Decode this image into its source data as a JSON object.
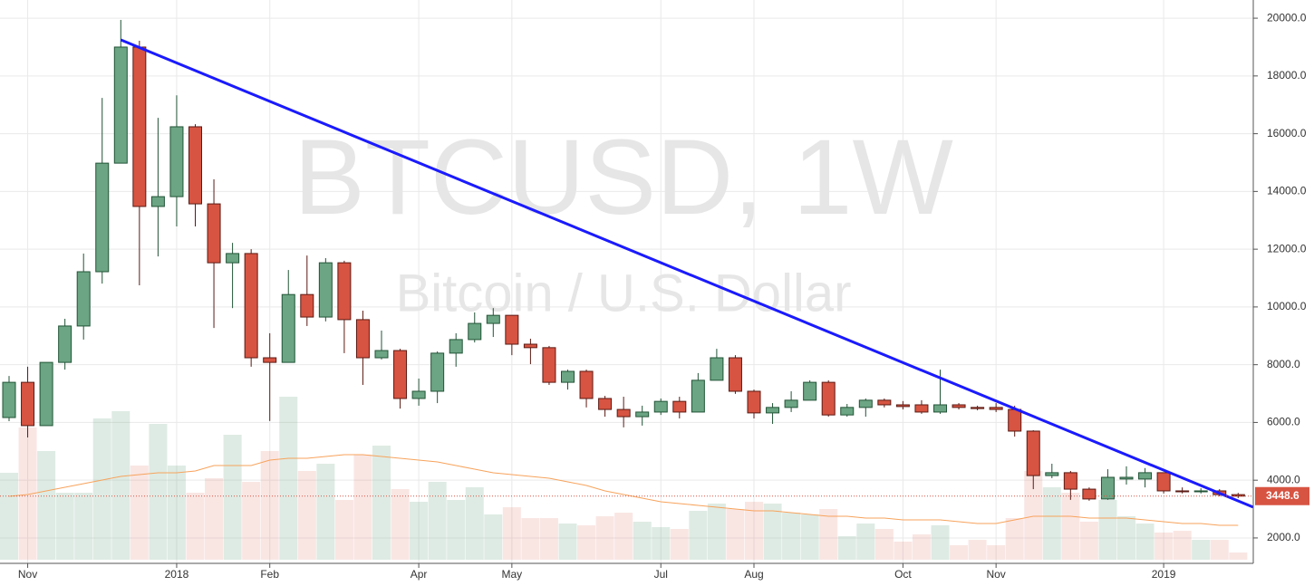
{
  "chart_data": {
    "type": "candlestick",
    "watermark_title": "BTCUSD, 1W",
    "watermark_subtitle": "Bitcoin / U.S. Dollar",
    "categories": [
      null,
      "Nov",
      null,
      null,
      null,
      null,
      null,
      null,
      null,
      "2018",
      null,
      null,
      null,
      null,
      "Feb",
      null,
      null,
      null,
      null,
      null,
      null,
      null,
      "Apr",
      null,
      null,
      null,
      null,
      "May",
      null,
      null,
      null,
      null,
      null,
      null,
      null,
      "Jul",
      null,
      null,
      null,
      null,
      "Aug",
      null,
      null,
      null,
      null,
      null,
      null,
      null,
      "Oct",
      null,
      null,
      null,
      null,
      "Nov",
      null,
      null,
      null,
      null,
      null,
      null,
      null,
      null,
      "2019",
      null,
      null,
      null,
      null
    ],
    "open": [
      6170,
      7390,
      5890,
      8080,
      9340,
      11220,
      14980,
      19000,
      13480,
      13820,
      16240,
      13570,
      11530,
      11850,
      8240,
      8080,
      10430,
      9650,
      11530,
      9560,
      8240,
      8490,
      6830,
      7080,
      8400,
      8870,
      9430,
      9710,
      8710,
      8590,
      7390,
      7770,
      6830,
      6450,
      6200,
      6360,
      6730,
      6360,
      7460,
      8240,
      7080,
      6330,
      6520,
      6770,
      7390,
      6260,
      6520,
      6770,
      6610,
      6610,
      6360,
      6610,
      6520,
      6520,
      6450,
      5700,
      4160,
      4260,
      3690,
      3350,
      4040,
      4040,
      4260,
      3630,
      3600,
      3630,
      3500
    ],
    "high": [
      7610,
      7930,
      8080,
      9590,
      11850,
      17240,
      19940,
      19220,
      16550,
      17330,
      16330,
      14420,
      12220,
      12000,
      9090,
      11280,
      11780,
      11690,
      11600,
      9870,
      9180,
      8550,
      7520,
      8460,
      9090,
      9810,
      9960,
      9710,
      8900,
      8650,
      7830,
      7830,
      6920,
      6890,
      6580,
      6830,
      6890,
      7710,
      8550,
      8330,
      7140,
      6670,
      7080,
      7460,
      7460,
      6640,
      6830,
      6830,
      6740,
      6770,
      7830,
      6670,
      6580,
      6670,
      6580,
      5730,
      4570,
      4320,
      3750,
      4380,
      4480,
      4420,
      4260,
      3750,
      3720,
      3690,
      3560
    ],
    "low": [
      6045,
      5480,
      5890,
      7830,
      8870,
      10810,
      14980,
      10750,
      11750,
      12790,
      12790,
      9270,
      9960,
      7930,
      6050,
      8080,
      9340,
      9500,
      8400,
      7300,
      8180,
      6480,
      6580,
      6670,
      7930,
      8770,
      8960,
      8330,
      8020,
      7300,
      7140,
      6520,
      6200,
      5830,
      5890,
      6260,
      6140,
      6360,
      7460,
      6990,
      6140,
      5950,
      6360,
      6770,
      6200,
      6200,
      6200,
      6520,
      6450,
      6300,
      6300,
      6450,
      6420,
      6360,
      5510,
      3690,
      4070,
      3320,
      3290,
      3320,
      3850,
      3750,
      3540,
      3540,
      3540,
      3440,
      3380
    ],
    "close": [
      7390,
      5890,
      8080,
      9340,
      11220,
      14980,
      19000,
      13480,
      13820,
      16240,
      13570,
      11530,
      11850,
      8240,
      8080,
      10430,
      9650,
      11530,
      9560,
      8240,
      8490,
      6830,
      7080,
      8400,
      8870,
      9430,
      9710,
      8710,
      8590,
      7390,
      7770,
      6830,
      6450,
      6200,
      6360,
      6730,
      6360,
      7460,
      8240,
      7080,
      6330,
      6520,
      6770,
      7390,
      6260,
      6520,
      6770,
      6610,
      6550,
      6360,
      6610,
      6520,
      6480,
      6450,
      5700,
      4160,
      4260,
      3690,
      3350,
      4100,
      4100,
      4260,
      3630,
      3600,
      3630,
      3500,
      3448.6
    ],
    "volume": [
      48,
      73,
      60,
      37,
      37,
      78,
      82,
      52,
      75,
      52,
      37,
      45,
      69,
      43,
      60,
      90,
      49,
      53,
      33,
      58,
      63,
      39,
      32,
      43,
      33,
      40,
      25,
      29,
      23,
      23,
      20,
      19,
      24,
      26,
      21,
      18,
      17,
      27,
      31,
      28,
      32,
      31,
      26,
      25,
      28,
      13,
      20,
      17,
      10,
      14,
      19,
      8,
      11,
      8,
      23,
      49,
      40,
      37,
      21,
      33,
      24,
      20,
      15,
      16,
      11,
      11,
      4
    ],
    "volume_ma": [
      35,
      36,
      38,
      40,
      42,
      44,
      46,
      47,
      48,
      48,
      49,
      52,
      52,
      52,
      55,
      56,
      56,
      57,
      58,
      58,
      57,
      56,
      55,
      54,
      52,
      50,
      48,
      47,
      46,
      45,
      43,
      41,
      38,
      36,
      34,
      32,
      31,
      30,
      29,
      28,
      27,
      27,
      26,
      25,
      24,
      24,
      23,
      23,
      22,
      22,
      22,
      21,
      20,
      20,
      22,
      24,
      24,
      24,
      23,
      23,
      23,
      22,
      21,
      20,
      20,
      19,
      19
    ],
    "volume_lim": [
      0,
      100
    ],
    "up_color": "#6ba583",
    "down_color": "#d75442",
    "volume_ma_color": "#f7a35c",
    "trendline": {
      "x": [
        6,
        66.8
      ],
      "y": [
        19250,
        3070
      ],
      "color": "#1a1aff"
    },
    "ylim": [
      1120,
      20630
    ],
    "yticks": [
      {
        "value": 2000,
        "label": "2000.0"
      },
      {
        "value": 4000,
        "label": "4000.0"
      },
      {
        "value": 6000,
        "label": "6000.0"
      },
      {
        "value": 8000,
        "label": "8000.0"
      },
      {
        "value": 10000,
        "label": "10000.0"
      },
      {
        "value": 12000,
        "label": "12000.0"
      },
      {
        "value": 14000,
        "label": "14000.0"
      },
      {
        "value": 16000,
        "label": "16000.0"
      },
      {
        "value": 18000,
        "label": "18000.0"
      },
      {
        "value": 20000,
        "label": "20000.0"
      }
    ],
    "grid": true
  }
}
